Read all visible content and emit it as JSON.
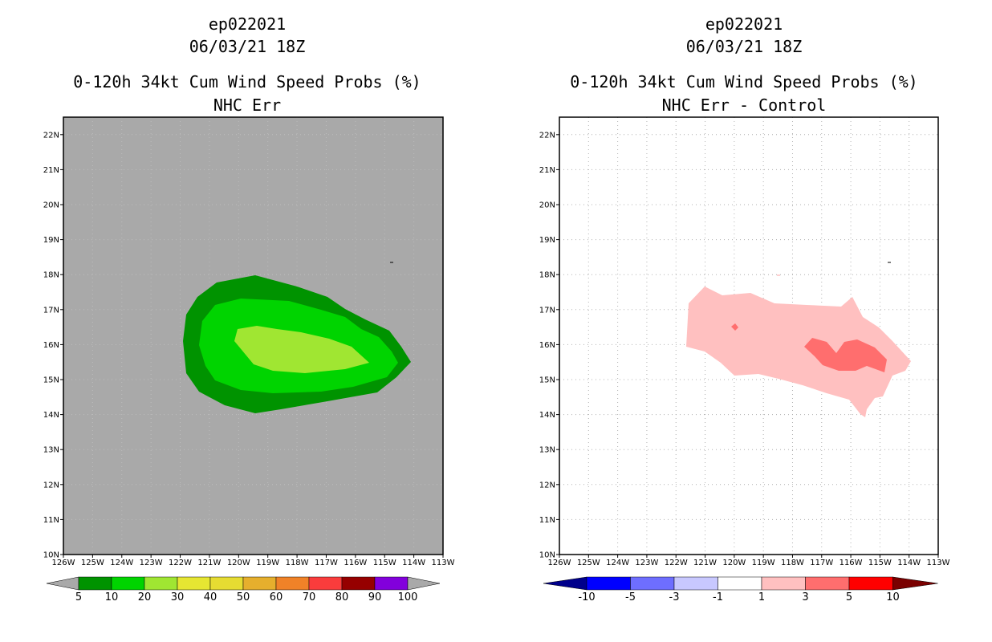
{
  "left_panel": {
    "storm_id": "ep022021",
    "datetime": "06/03/21 18Z",
    "product": "0-120h 34kt Cum Wind Speed Probs (%)",
    "subtitle": "NHC Err",
    "background_color": "#a9a9a9",
    "colorbar": {
      "labels": [
        "5",
        "10",
        "20",
        "30",
        "40",
        "50",
        "60",
        "70",
        "80",
        "90",
        "100"
      ],
      "colors": [
        "#009300",
        "#00d400",
        "#a0e632",
        "#e6e632",
        "#e6dc32",
        "#e6af2d",
        "#f08228",
        "#fa3c3c",
        "#960000",
        "#8200dc"
      ],
      "end_color": "#a9a9a9"
    }
  },
  "right_panel": {
    "storm_id": "ep022021",
    "datetime": "06/03/21 18Z",
    "product": "0-120h 34kt Cum Wind Speed Probs (%)",
    "subtitle": "NHC Err - Control",
    "background_color": "#ffffff",
    "colorbar": {
      "labels": [
        "-10",
        "-5",
        "-3",
        "-1",
        "1",
        "3",
        "5",
        "10"
      ],
      "colors": [
        "#0000ff",
        "#6e6eff",
        "#c8c8ff",
        "#ffffff",
        "#ffc0c0",
        "#ff6e6e",
        "#ff0000"
      ],
      "low_end_color": "#00008b",
      "high_end_color": "#7a0000"
    }
  },
  "axes": {
    "lat_labels": [
      "22N",
      "21N",
      "20N",
      "19N",
      "18N",
      "17N",
      "16N",
      "15N",
      "14N",
      "13N",
      "12N",
      "11N",
      "10N"
    ],
    "lon_labels": [
      "126W",
      "125W",
      "124W",
      "123W",
      "122W",
      "121W",
      "120W",
      "119W",
      "118W",
      "117W",
      "116W",
      "115W",
      "114W",
      "113W"
    ]
  }
}
